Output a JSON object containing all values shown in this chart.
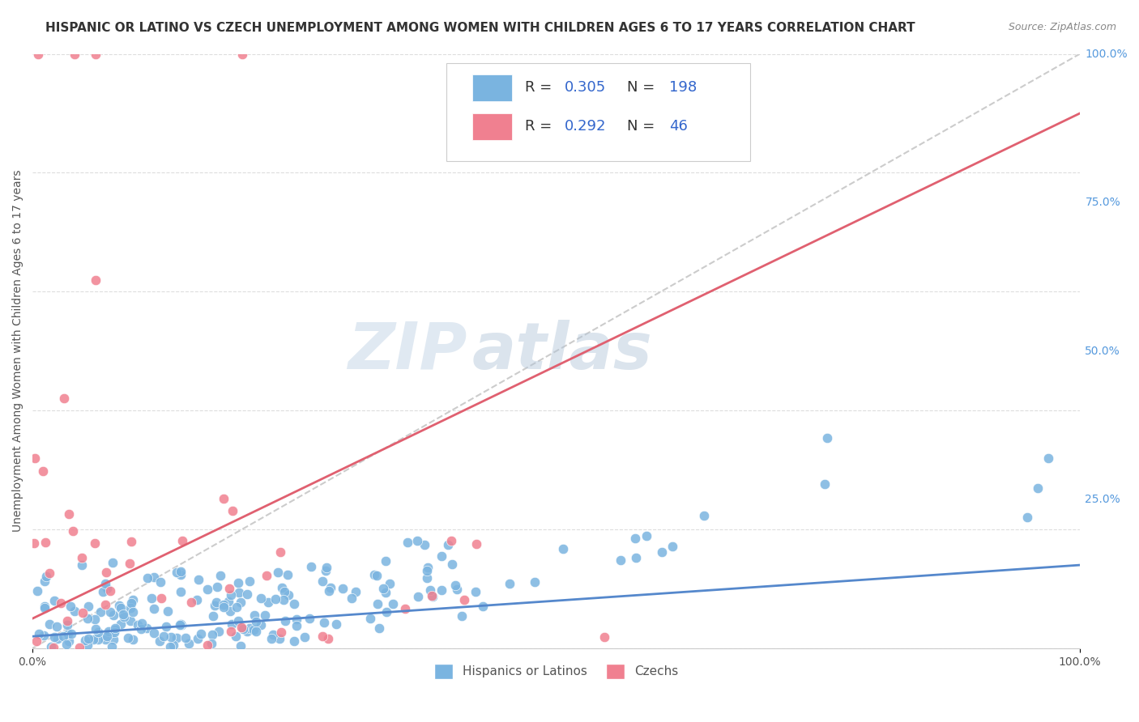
{
  "title": "HISPANIC OR LATINO VS CZECH UNEMPLOYMENT AMONG WOMEN WITH CHILDREN AGES 6 TO 17 YEARS CORRELATION CHART",
  "source": "Source: ZipAtlas.com",
  "ylabel": "Unemployment Among Women with Children Ages 6 to 17 years",
  "watermark_zip": "ZIP",
  "watermark_atlas": "atlas",
  "background_color": "#ffffff",
  "plot_bg": "#ffffff",
  "grid_color": "#dddddd",
  "blue_scatter_color": "#7ab4e0",
  "pink_scatter_color": "#f08090",
  "blue_line_color": "#5588cc",
  "pink_line_color": "#e06070",
  "diag_line_color": "#cccccc",
  "seed": 42,
  "n_blue": 198,
  "n_pink": 46,
  "R_blue": 0.305,
  "R_pink": 0.292,
  "N_blue": 198,
  "N_pink": 46,
  "xlim": [
    0.0,
    1.0
  ],
  "ylim": [
    0.0,
    1.0
  ],
  "title_fontsize": 11,
  "source_fontsize": 9,
  "ylabel_fontsize": 10,
  "legend_fontsize": 13,
  "tick_fontsize": 10,
  "blue_slope": 0.12,
  "blue_intercept": 0.02,
  "pink_slope": 0.85,
  "pink_intercept": 0.05,
  "ytick_positions": [
    1.0,
    0.75,
    0.5,
    0.25
  ],
  "ytick_labels": [
    "100.0%",
    "75.0%",
    "50.0%",
    "25.0%"
  ],
  "legend_entry_blue_label": "Hispanics or Latinos",
  "legend_entry_pink_label": "Czechs"
}
